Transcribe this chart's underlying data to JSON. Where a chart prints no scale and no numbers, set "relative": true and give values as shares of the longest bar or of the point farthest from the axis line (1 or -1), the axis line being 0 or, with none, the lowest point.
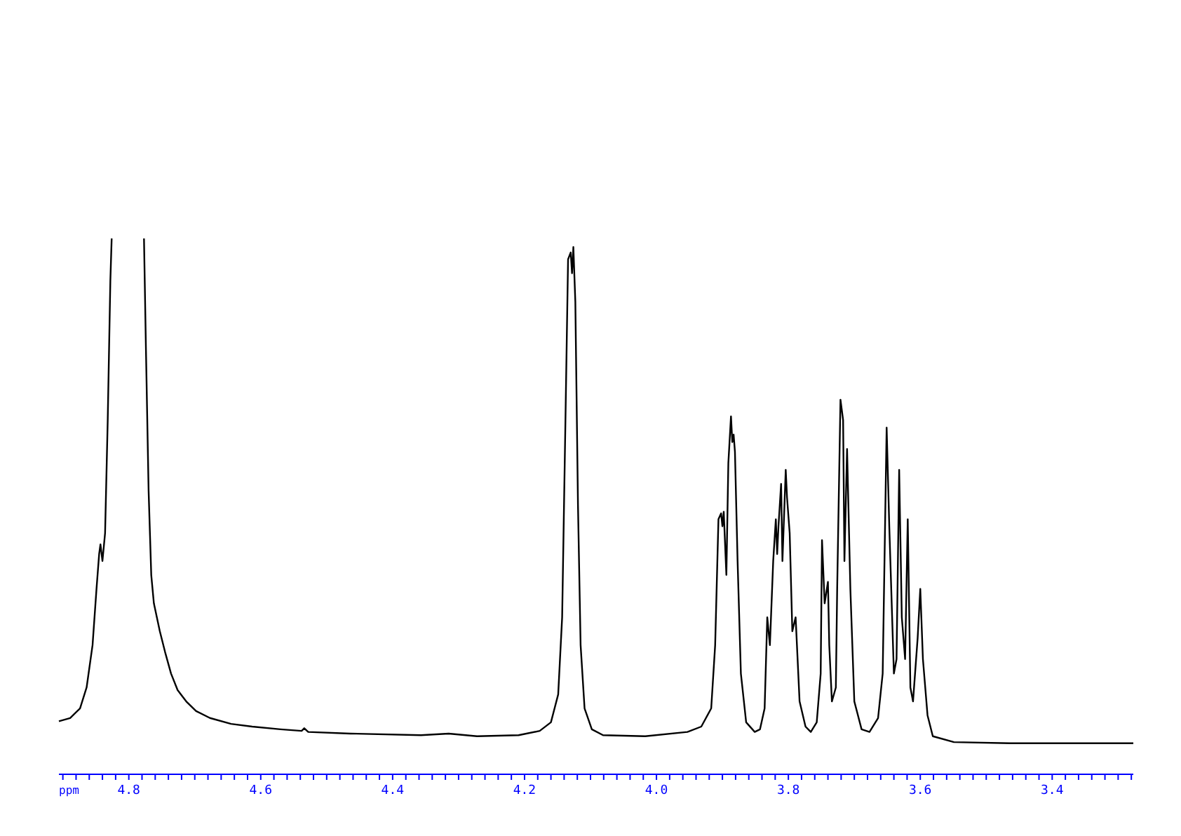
{
  "chart_data": {
    "type": "line",
    "relative": true,
    "xlabel": "ppm",
    "xlim": [
      4.906,
      3.277
    ],
    "xticks": [
      {
        "value": 4.9,
        "label": null
      },
      {
        "value": 4.88,
        "label": null
      },
      {
        "value": 4.86,
        "label": null
      },
      {
        "value": 4.84,
        "label": null
      },
      {
        "value": 4.82,
        "label": null
      },
      4.8,
      {
        "value": 4.78,
        "label": null
      },
      {
        "value": 4.76,
        "label": null
      },
      {
        "value": 4.74,
        "label": null
      },
      {
        "value": 4.72,
        "label": null
      },
      {
        "value": 4.7,
        "label": null
      },
      {
        "value": 4.68,
        "label": null
      },
      {
        "value": 4.66,
        "label": null
      },
      {
        "value": 4.64,
        "label": null
      },
      {
        "value": 4.62,
        "label": null
      },
      4.6,
      {
        "value": 4.58,
        "label": null
      },
      {
        "value": 4.56,
        "label": null
      },
      {
        "value": 4.54,
        "label": null
      },
      {
        "value": 4.52,
        "label": null
      },
      {
        "value": 4.5,
        "label": null
      },
      {
        "value": 4.48,
        "label": null
      },
      {
        "value": 4.46,
        "label": null
      },
      {
        "value": 4.44,
        "label": null
      },
      {
        "value": 4.42,
        "label": null
      },
      4.4,
      {
        "value": 4.38,
        "label": null
      },
      {
        "value": 4.36,
        "label": null
      },
      {
        "value": 4.34,
        "label": null
      },
      {
        "value": 4.32,
        "label": null
      },
      {
        "value": 4.3,
        "label": null
      },
      {
        "value": 4.28,
        "label": null
      },
      {
        "value": 4.26,
        "label": null
      },
      {
        "value": 4.24,
        "label": null
      },
      {
        "value": 4.22,
        "label": null
      },
      4.2,
      {
        "value": 4.18,
        "label": null
      },
      {
        "value": 4.16,
        "label": null
      },
      {
        "value": 4.14,
        "label": null
      },
      {
        "value": 4.12,
        "label": null
      },
      {
        "value": 4.1,
        "label": null
      },
      {
        "value": 4.08,
        "label": null
      },
      {
        "value": 4.06,
        "label": null
      },
      {
        "value": 4.04,
        "label": null
      },
      {
        "value": 4.02,
        "label": null
      },
      {
        "value": 4.0,
        "label": "4.0"
      },
      {
        "value": 3.98,
        "label": null
      },
      {
        "value": 3.96,
        "label": null
      },
      {
        "value": 3.94,
        "label": null
      },
      {
        "value": 3.92,
        "label": null
      },
      {
        "value": 3.9,
        "label": null
      },
      {
        "value": 3.88,
        "label": null
      },
      {
        "value": 3.86,
        "label": null
      },
      {
        "value": 3.84,
        "label": null
      },
      {
        "value": 3.82,
        "label": null
      },
      3.8,
      {
        "value": 3.78,
        "label": null
      },
      {
        "value": 3.76,
        "label": null
      },
      {
        "value": 3.74,
        "label": null
      },
      {
        "value": 3.72,
        "label": null
      },
      {
        "value": 3.7,
        "label": null
      },
      {
        "value": 3.68,
        "label": null
      },
      {
        "value": 3.66,
        "label": null
      },
      {
        "value": 3.64,
        "label": null
      },
      {
        "value": 3.62,
        "label": null
      },
      3.6,
      {
        "value": 3.58,
        "label": null
      },
      {
        "value": 3.56,
        "label": null
      },
      {
        "value": 3.54,
        "label": null
      },
      {
        "value": 3.52,
        "label": null
      },
      {
        "value": 3.5,
        "label": null
      },
      {
        "value": 3.48,
        "label": null
      },
      {
        "value": 3.46,
        "label": null
      },
      {
        "value": 3.44,
        "label": null
      },
      {
        "value": 3.42,
        "label": null
      },
      3.4,
      {
        "value": 3.38,
        "label": null
      },
      {
        "value": 3.36,
        "label": null
      },
      {
        "value": 3.34,
        "label": null
      },
      {
        "value": 3.32,
        "label": null
      },
      {
        "value": 3.3,
        "label": null
      },
      {
        "value": 3.28,
        "label": null
      }
    ],
    "series": [
      {
        "color": "#000000",
        "x": [
          4.906,
          4.889,
          4.874,
          4.864,
          4.855,
          4.849,
          4.845,
          4.843,
          4.84,
          4.836,
          4.832,
          4.828,
          4.826,
          4.8,
          4.777,
          4.774,
          4.77,
          4.766,
          4.762,
          4.753,
          4.745,
          4.736,
          4.726,
          4.713,
          4.698,
          4.677,
          4.645,
          4.613,
          4.57,
          4.538,
          4.534,
          4.528,
          4.464,
          4.357,
          4.315,
          4.272,
          4.209,
          4.177,
          4.16,
          4.149,
          4.143,
          4.138,
          4.134,
          4.13,
          4.128,
          4.126,
          4.123,
          4.119,
          4.115,
          4.109,
          4.098,
          4.081,
          4.017,
          3.953,
          3.932,
          3.917,
          3.911,
          3.906,
          3.902,
          3.9,
          3.898,
          3.894,
          3.891,
          3.887,
          3.885,
          3.883,
          3.881,
          3.877,
          3.872,
          3.864,
          3.851,
          3.843,
          3.836,
          3.832,
          3.828,
          3.823,
          3.819,
          3.817,
          3.815,
          3.811,
          3.809,
          3.804,
          3.802,
          3.798,
          3.794,
          3.789,
          3.787,
          3.783,
          3.774,
          3.766,
          3.757,
          3.751,
          3.749,
          3.745,
          3.74,
          3.738,
          3.734,
          3.728,
          3.726,
          3.721,
          3.717,
          3.715,
          3.711,
          3.706,
          3.7,
          3.689,
          3.677,
          3.664,
          3.657,
          3.651,
          3.647,
          3.64,
          3.636,
          3.632,
          3.628,
          3.623,
          3.619,
          3.615,
          3.611,
          3.604,
          3.6,
          3.596,
          3.589,
          3.581,
          3.549,
          3.464,
          3.379,
          3.277
        ],
        "values": [
          0.099,
          0.105,
          0.123,
          0.162,
          0.241,
          0.346,
          0.411,
          0.429,
          0.398,
          0.45,
          0.66,
          0.921,
          1,
          null,
          1,
          0.791,
          0.529,
          0.372,
          0.319,
          0.267,
          0.228,
          0.188,
          0.157,
          0.136,
          0.118,
          0.105,
          0.094,
          0.089,
          0.084,
          0.081,
          0.086,
          0.079,
          0.076,
          0.073,
          0.076,
          0.071,
          0.073,
          0.081,
          0.097,
          0.149,
          0.293,
          0.66,
          0.961,
          0.974,
          0.935,
          0.984,
          0.882,
          0.503,
          0.241,
          0.123,
          0.084,
          0.073,
          0.071,
          0.079,
          0.089,
          0.123,
          0.241,
          0.476,
          0.487,
          0.463,
          0.49,
          0.372,
          0.581,
          0.668,
          0.62,
          0.634,
          0.602,
          0.398,
          0.188,
          0.097,
          0.079,
          0.084,
          0.123,
          0.293,
          0.241,
          0.398,
          0.476,
          0.411,
          0.463,
          0.542,
          0.398,
          0.568,
          0.516,
          0.45,
          0.267,
          0.293,
          0.241,
          0.136,
          0.089,
          0.079,
          0.097,
          0.188,
          0.437,
          0.319,
          0.359,
          0.241,
          0.136,
          0.162,
          0.346,
          0.699,
          0.661,
          0.398,
          0.607,
          0.346,
          0.136,
          0.084,
          0.079,
          0.105,
          0.188,
          0.647,
          0.463,
          0.188,
          0.215,
          0.568,
          0.293,
          0.215,
          0.476,
          0.162,
          0.136,
          0.254,
          0.346,
          0.215,
          0.11,
          0.071,
          0.06,
          0.058,
          0.058,
          0.058
        ]
      }
    ]
  }
}
